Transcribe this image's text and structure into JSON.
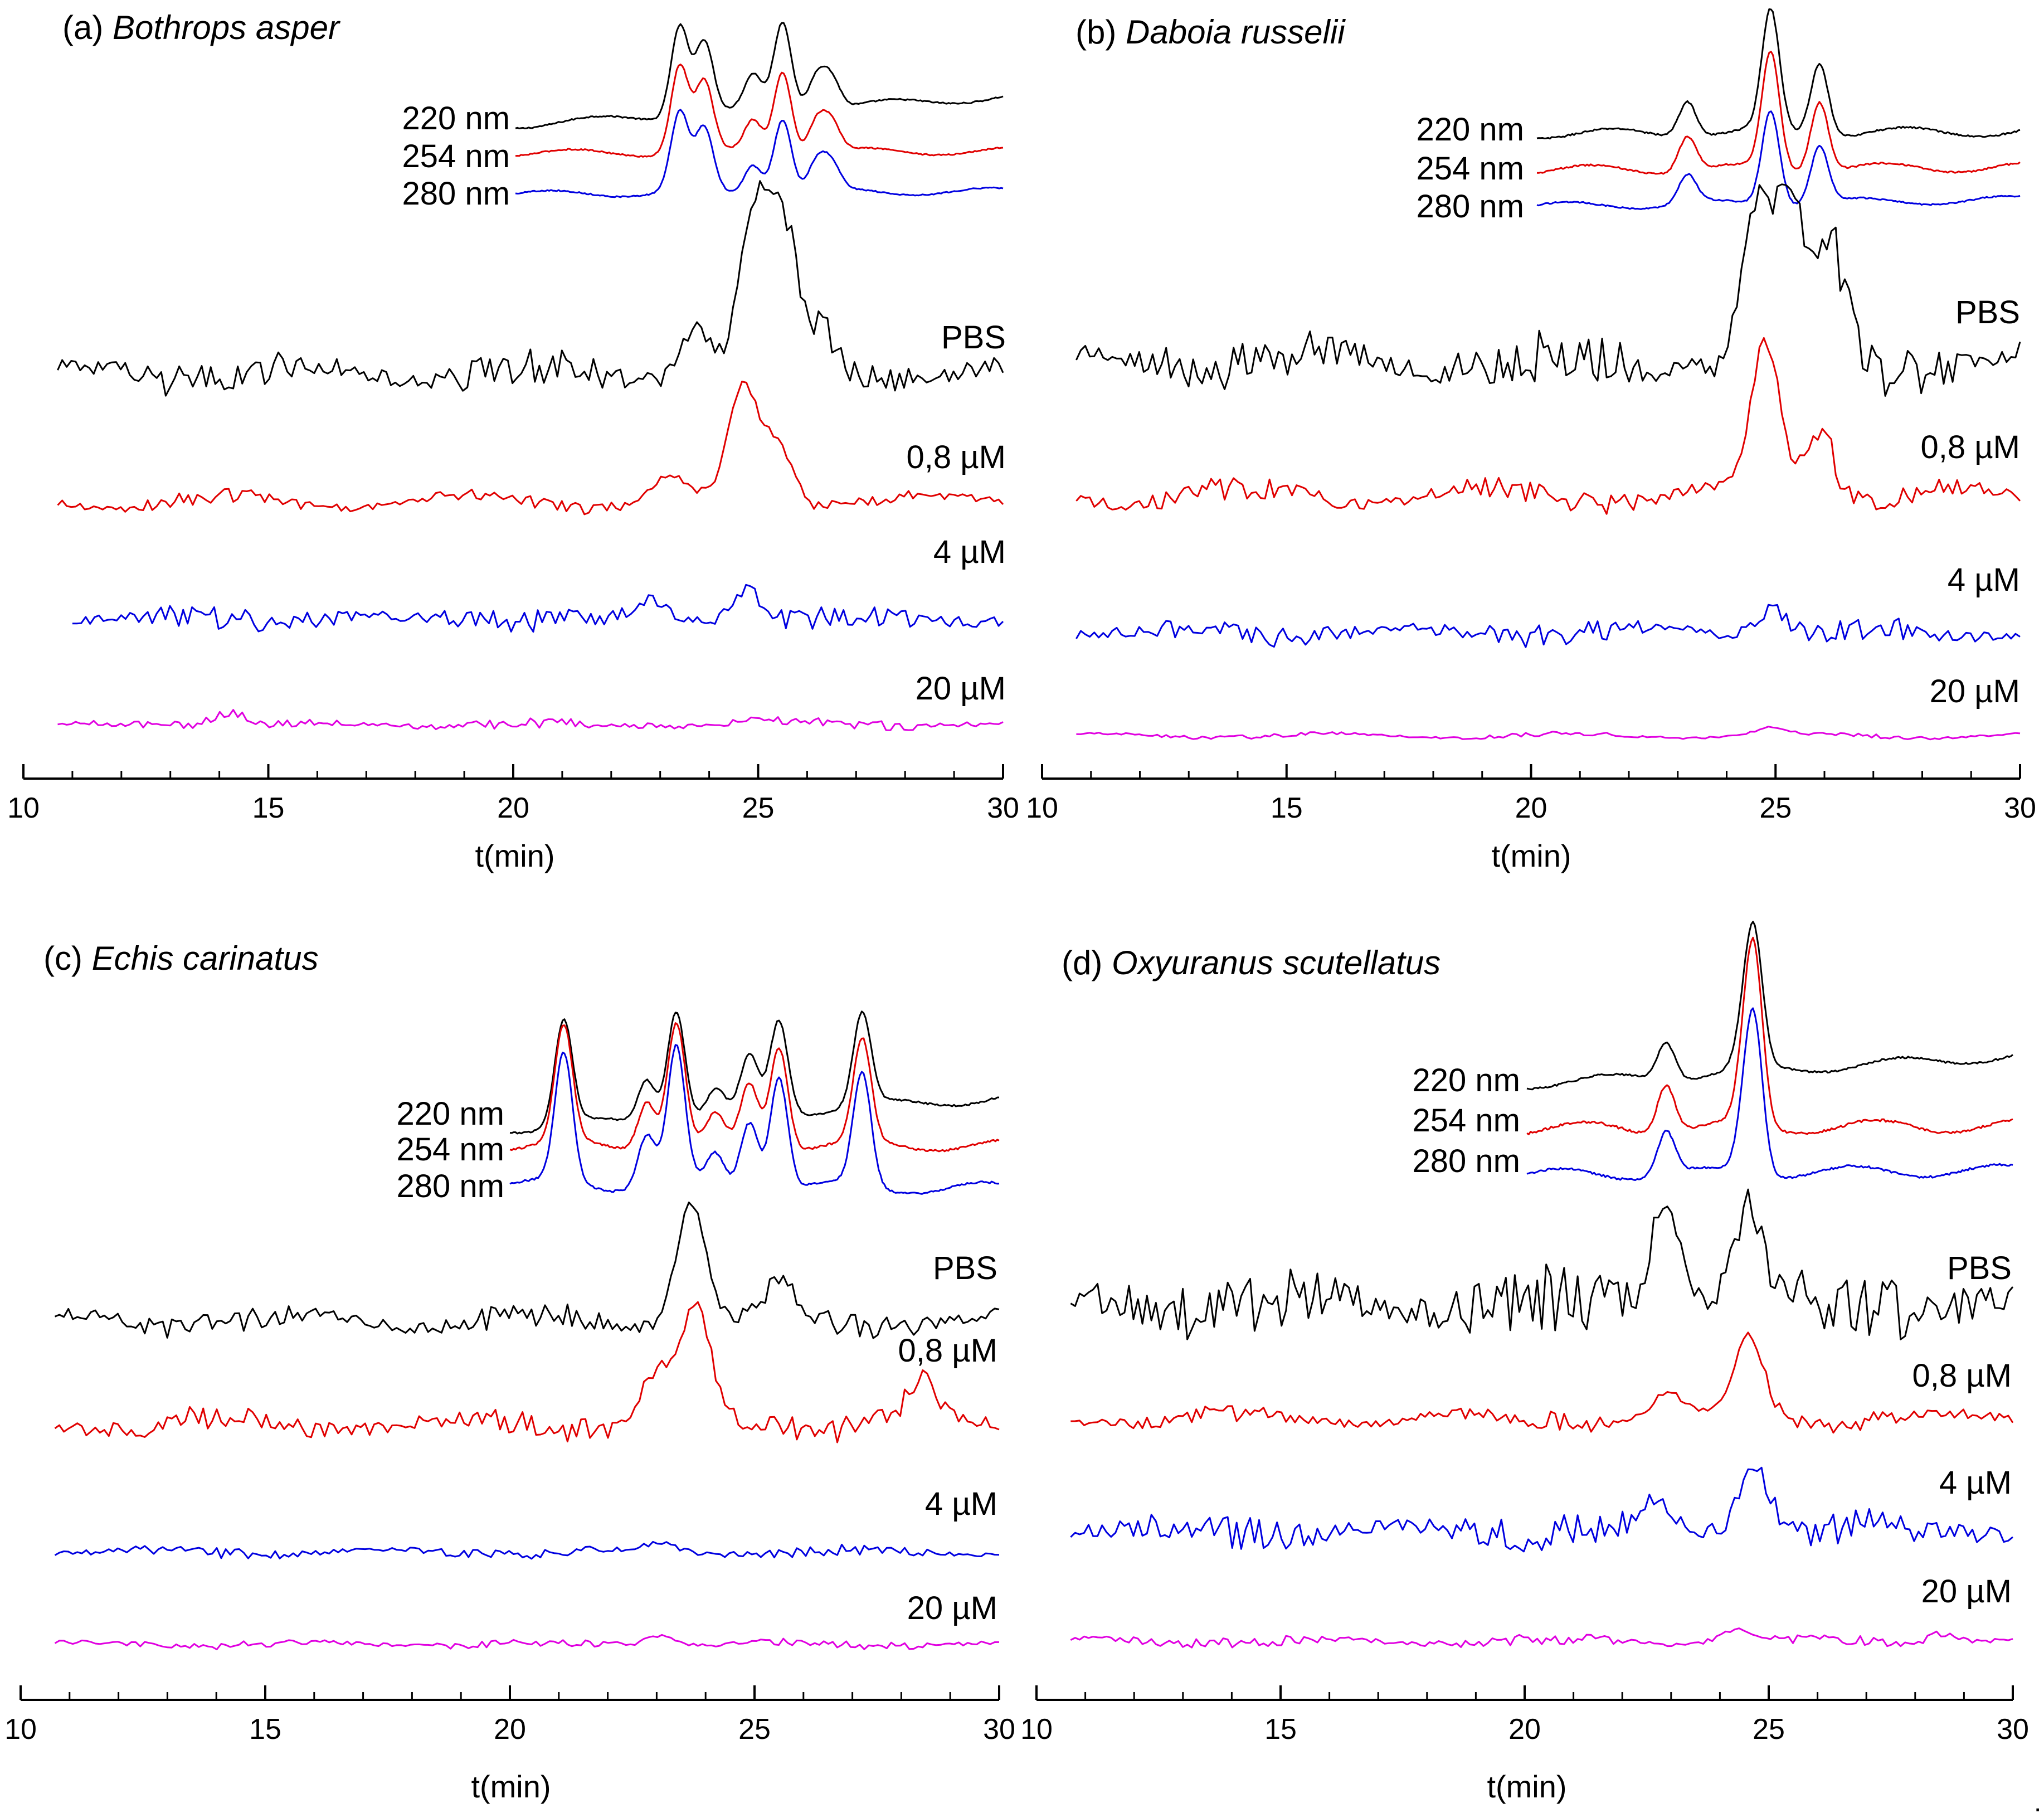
{
  "figure": {
    "trailing_mark": "."
  },
  "colors": {
    "220 nm": "#000000",
    "254 nm": "#e00000",
    "280 nm": "#0000e0",
    "PBS": "#000000",
    "0,8 µM": "#e00000",
    "4 µM": "#0000e0",
    "20 µM": "#e000e0"
  },
  "chart_data": [
    {
      "type": "line",
      "panel": "(a)",
      "species": "Bothrops asper",
      "xlabel": "t(min)",
      "ylabel": "",
      "xlim": [
        10,
        30
      ],
      "xticks": [
        10,
        15,
        20,
        25,
        30
      ],
      "uv_labels": [
        "220 nm",
        "254 nm",
        "280 nm"
      ],
      "uv_peaks": [
        {
          "t": 23.4,
          "h": 0.95
        },
        {
          "t": 23.9,
          "h": 0.75
        },
        {
          "t": 24.9,
          "h": 0.35
        },
        {
          "t": 25.5,
          "h": 0.9
        },
        {
          "t": 26.2,
          "h": 0.35
        },
        {
          "t": 26.5,
          "h": 0.3
        }
      ],
      "series": [
        {
          "name": "PBS",
          "t_start": 10.7,
          "t_end": 30,
          "noise": 0.18,
          "peaks": [
            {
              "t": 23.7,
              "h": 0.35
            },
            {
              "t": 24.9,
              "h": 1.0
            },
            {
              "t": 25.5,
              "h": 0.95
            },
            {
              "t": 26.3,
              "h": 0.3
            }
          ]
        },
        {
          "name": "0,8 µM",
          "t_start": 10.7,
          "t_end": 30,
          "noise": 0.1,
          "peaks": [
            {
              "t": 23.2,
              "h": 0.2
            },
            {
              "t": 24.7,
              "h": 1.0
            },
            {
              "t": 25.4,
              "h": 0.5
            }
          ]
        },
        {
          "name": "4 µM",
          "t_start": 11,
          "t_end": 30,
          "noise": 0.35,
          "peaks": [
            {
              "t": 22.8,
              "h": 0.3
            },
            {
              "t": 24.8,
              "h": 0.6
            }
          ]
        },
        {
          "name": "20 µM",
          "t_start": 10.7,
          "t_end": 30,
          "noise": 0.25,
          "peaks": [
            {
              "t": 14.2,
              "h": 0.4
            },
            {
              "t": 24.9,
              "h": 0.2
            }
          ]
        }
      ]
    },
    {
      "type": "line",
      "panel": "(b)",
      "species": "Daboia russelii",
      "xlabel": "t(min)",
      "ylabel": "",
      "xlim": [
        10,
        30
      ],
      "xticks": [
        10,
        15,
        20,
        25,
        30
      ],
      "uv_labels": [
        "220 nm",
        "254 nm",
        "280 nm"
      ],
      "uv_peaks": [
        {
          "t": 23.2,
          "h": 0.3
        },
        {
          "t": 24.9,
          "h": 1.0
        },
        {
          "t": 25.9,
          "h": 0.6
        }
      ],
      "series": [
        {
          "name": "PBS",
          "t_start": 10.7,
          "t_end": 30,
          "noise": 0.25,
          "peaks": [
            {
              "t": 24.6,
              "h": 0.9
            },
            {
              "t": 25.3,
              "h": 1.0
            },
            {
              "t": 26.1,
              "h": 0.7
            }
          ]
        },
        {
          "name": "0,8 µM",
          "t_start": 10.7,
          "t_end": 30,
          "noise": 0.12,
          "peaks": [
            {
              "t": 24.8,
              "h": 1.0
            },
            {
              "t": 25.9,
              "h": 0.5
            }
          ]
        },
        {
          "name": "4 µM",
          "t_start": 10.7,
          "t_end": 30,
          "noise": 0.25,
          "peaks": [
            {
              "t": 24.9,
              "h": 0.4
            }
          ]
        },
        {
          "name": "20 µM",
          "t_start": 10.7,
          "t_end": 30,
          "noise": 0.08,
          "peaks": [
            {
              "t": 24.9,
              "h": 0.2
            }
          ]
        }
      ]
    },
    {
      "type": "line",
      "panel": "(c)",
      "species": "Echis carinatus",
      "xlabel": "t(min)",
      "ylabel": "",
      "xlim": [
        10,
        30
      ],
      "xticks": [
        10,
        15,
        20,
        25,
        30
      ],
      "uv_labels": [
        "220 nm",
        "254 nm",
        "280 nm"
      ],
      "uv_peaks": [
        {
          "t": 21.1,
          "h": 0.85
        },
        {
          "t": 22.8,
          "h": 0.35
        },
        {
          "t": 23.4,
          "h": 0.9
        },
        {
          "t": 24.2,
          "h": 0.2
        },
        {
          "t": 24.9,
          "h": 0.45
        },
        {
          "t": 25.5,
          "h": 0.75
        },
        {
          "t": 27.2,
          "h": 0.75
        }
      ],
      "series": [
        {
          "name": "PBS",
          "t_start": 10.7,
          "t_end": 30,
          "noise": 0.15,
          "peaks": [
            {
              "t": 23.7,
              "h": 1.0
            },
            {
              "t": 25.5,
              "h": 0.25
            }
          ]
        },
        {
          "name": "0,8 µM",
          "t_start": 10.7,
          "t_end": 30,
          "noise": 0.18,
          "peaks": [
            {
              "t": 23.0,
              "h": 0.45
            },
            {
              "t": 23.8,
              "h": 1.0
            },
            {
              "t": 28.4,
              "h": 0.35
            }
          ]
        },
        {
          "name": "4 µM",
          "t_start": 10.7,
          "t_end": 30,
          "noise": 0.2,
          "peaks": [
            {
              "t": 23.1,
              "h": 0.2
            }
          ]
        },
        {
          "name": "20 µM",
          "t_start": 10.7,
          "t_end": 30,
          "noise": 0.18,
          "peaks": [
            {
              "t": 23.1,
              "h": 0.3
            }
          ]
        }
      ]
    },
    {
      "type": "line",
      "panel": "(d)",
      "species": "Oxyuranus scutellatus",
      "xlabel": "t(min)",
      "ylabel": "",
      "xlim": [
        10,
        30
      ],
      "xticks": [
        10,
        15,
        20,
        25,
        30
      ],
      "uv_labels": [
        "220 nm",
        "254 nm",
        "280 nm"
      ],
      "uv_peaks": [
        {
          "t": 22.9,
          "h": 0.3
        },
        {
          "t": 24.5,
          "h": 0.25
        },
        {
          "t": 24.7,
          "h": 1.0
        }
      ],
      "series": [
        {
          "name": "PBS",
          "t_start": 10.7,
          "t_end": 30,
          "noise": 0.4,
          "peaks": [
            {
              "t": 22.9,
              "h": 0.9
            },
            {
              "t": 24.6,
              "h": 0.8
            }
          ]
        },
        {
          "name": "0,8 µM",
          "t_start": 10.7,
          "t_end": 30,
          "noise": 0.15,
          "peaks": [
            {
              "t": 22.9,
              "h": 0.3
            },
            {
              "t": 24.6,
              "h": 0.9
            }
          ]
        },
        {
          "name": "4 µM",
          "t_start": 10.7,
          "t_end": 30,
          "noise": 0.3,
          "peaks": [
            {
              "t": 22.7,
              "h": 0.3
            },
            {
              "t": 24.7,
              "h": 0.8
            }
          ]
        },
        {
          "name": "20 µM",
          "t_start": 10.7,
          "t_end": 30,
          "noise": 0.18,
          "peaks": [
            {
              "t": 24.3,
              "h": 0.25
            },
            {
              "t": 28.5,
              "h": 0.2
            }
          ]
        }
      ]
    }
  ]
}
